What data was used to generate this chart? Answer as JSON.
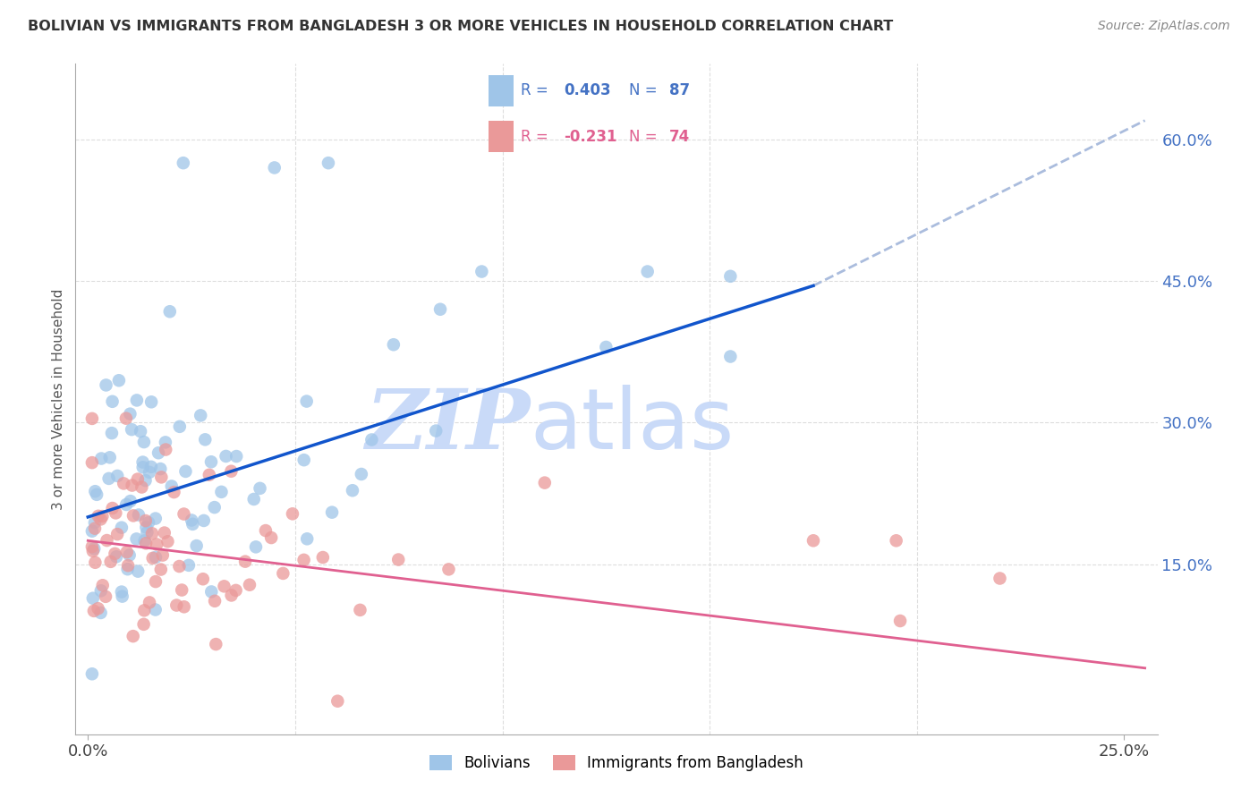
{
  "title": "BOLIVIAN VS IMMIGRANTS FROM BANGLADESH 3 OR MORE VEHICLES IN HOUSEHOLD CORRELATION CHART",
  "source": "Source: ZipAtlas.com",
  "ylabel": "3 or more Vehicles in Household",
  "blue_color": "#9fc5e8",
  "pink_color": "#ea9999",
  "blue_line_color": "#1155cc",
  "pink_line_color": "#e06090",
  "dashed_line_color": "#aabcdd",
  "watermark_zip": "ZIP",
  "watermark_atlas": "atlas",
  "watermark_color": "#c9daf8",
  "background_color": "#ffffff",
  "blue_trend": [
    0.0,
    0.175,
    0.2,
    0.445
  ],
  "blue_dashed": [
    0.175,
    0.255,
    0.445,
    0.62
  ],
  "pink_trend": [
    0.0,
    0.255,
    0.175,
    0.04
  ],
  "xlim": [
    -0.003,
    0.258
  ],
  "ylim": [
    -0.03,
    0.68
  ],
  "xticks": [
    0.0,
    0.25
  ],
  "xtick_labels": [
    "0.0%",
    "25.0%"
  ],
  "xgrid": [
    0.05,
    0.1,
    0.15,
    0.2
  ],
  "yticks_right": [
    0.15,
    0.3,
    0.45,
    0.6
  ],
  "ytick_right_labels": [
    "15.0%",
    "30.0%",
    "45.0%",
    "60.0%"
  ],
  "legend_R1": "R = 0.403",
  "legend_N1": "N = 87",
  "legend_R2": "R = -0.231",
  "legend_N2": "N = 74"
}
